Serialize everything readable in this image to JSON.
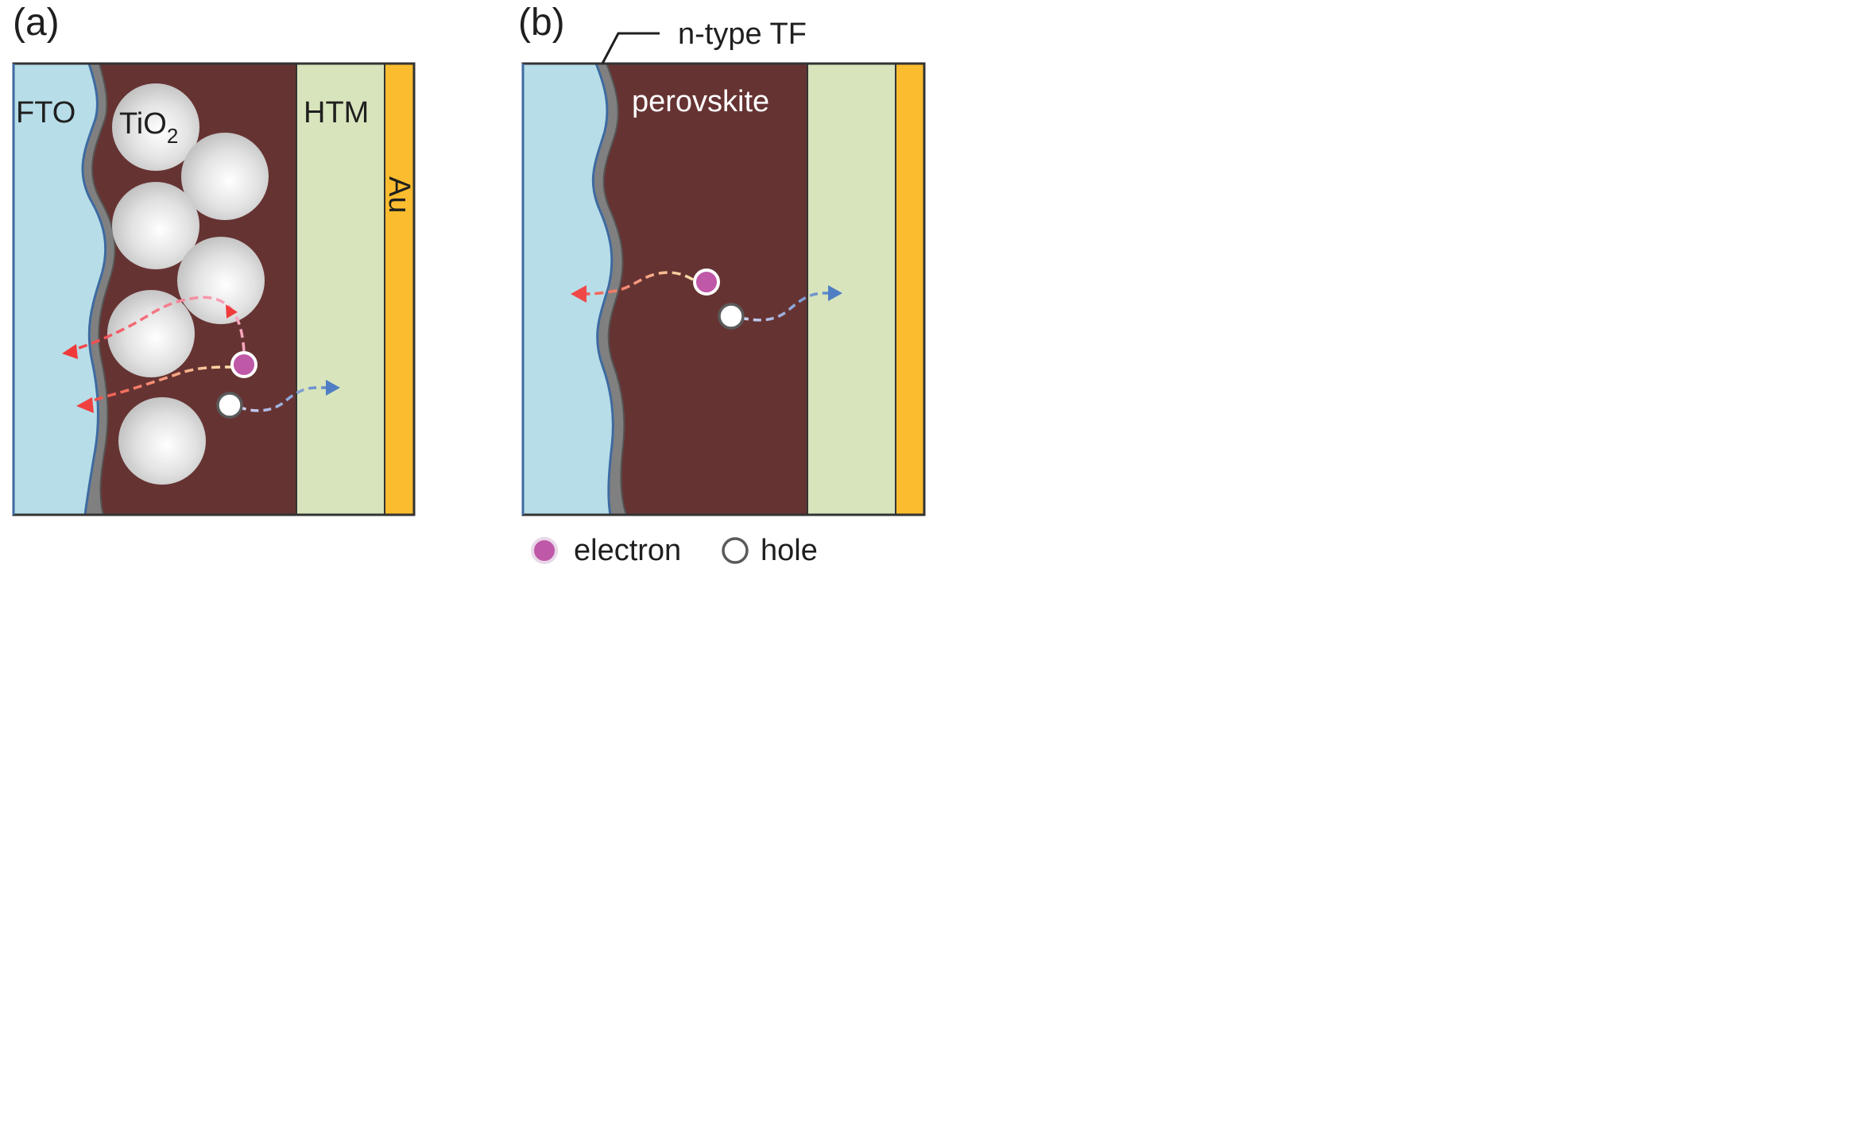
{
  "panels": {
    "a": {
      "tag": "(a)",
      "labels": {
        "fto": "FTO",
        "tio2_main": "TiO",
        "tio2_sub": "2",
        "htm": "HTM",
        "au": "Au"
      }
    },
    "b": {
      "tag": "(b)",
      "labels": {
        "callout": "n-type TF",
        "perovskite": "perovskite"
      }
    }
  },
  "legend": {
    "electron": "electron",
    "hole": "hole"
  },
  "colors": {
    "fto": "#b7dde8",
    "perovskite": "#663333",
    "htm": "#d8e4bc",
    "au": "#fbbd2f",
    "tio2_layer": "#808080",
    "electron": "#c058a8",
    "hole": "#ffffff",
    "electron_path": "#f04848",
    "hole_path": "#5b86c8"
  }
}
